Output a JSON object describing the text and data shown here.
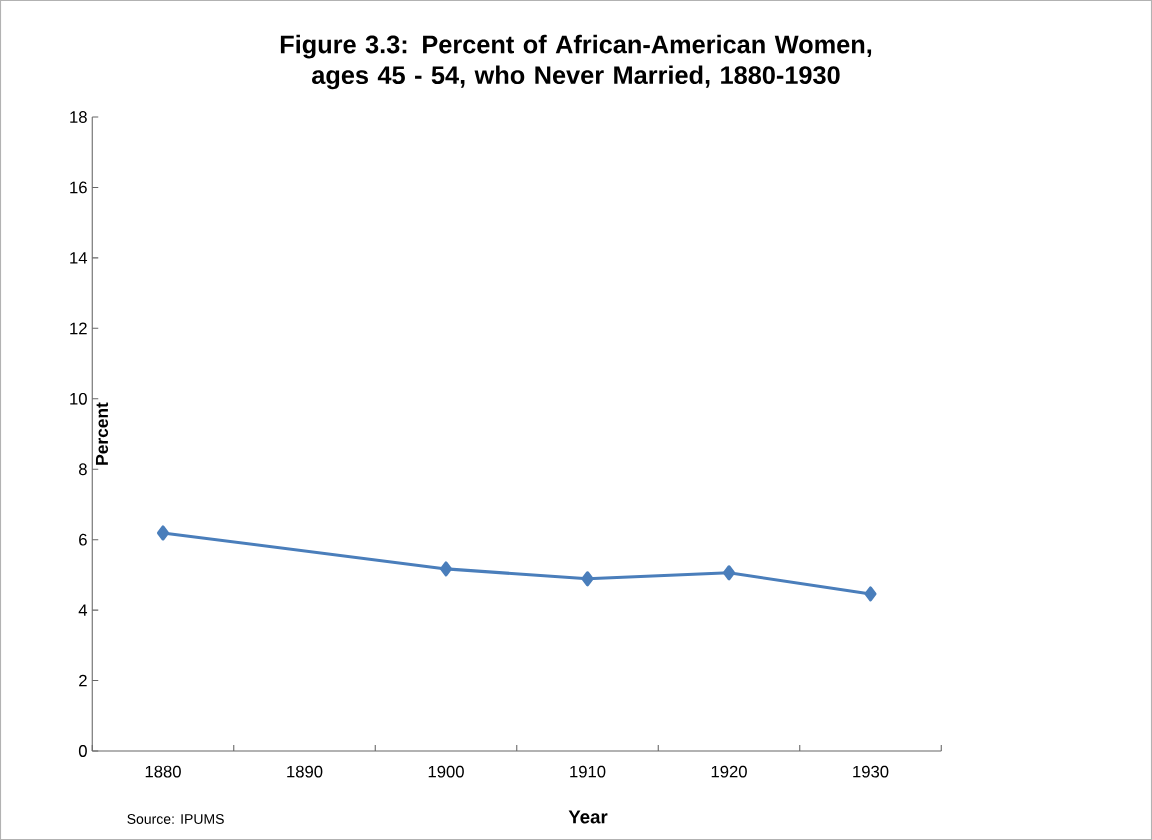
{
  "chart_data": {
    "type": "line",
    "title": "Figure 3.3: Percent of African-American Women, ages 45 - 54, who Never Married, 1880-1930",
    "xlabel": "Year",
    "ylabel": "Percent",
    "annotations": [
      "Source: IPUMS"
    ],
    "categories": [
      "1880",
      "1890",
      "1900",
      "1910",
      "1920",
      "1930"
    ],
    "series": [
      {
        "color": "#4a7ebb",
        "values": [
          6.19,
          null,
          5.17,
          4.89,
          5.06,
          4.46
        ]
      }
    ],
    "ylim": [
      0,
      18
    ],
    "yticks": [
      0,
      2,
      4,
      6,
      8,
      10,
      12,
      14,
      16,
      18
    ],
    "marker": "diamond",
    "line_style": "solid"
  }
}
